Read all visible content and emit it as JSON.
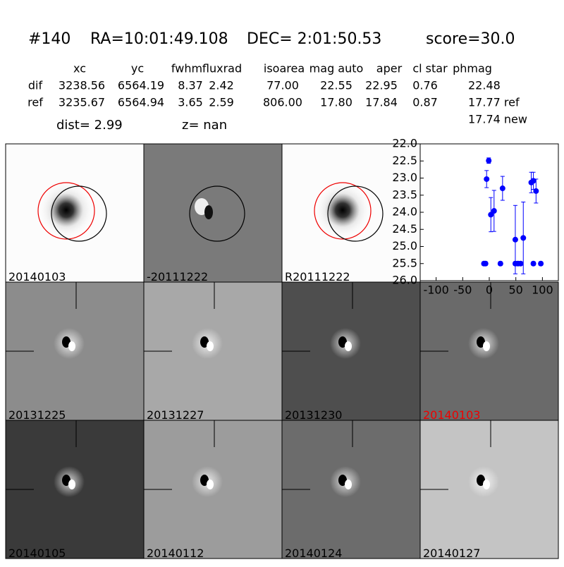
{
  "header": {
    "id": "#140",
    "ra": "RA=10:01:49.108",
    "dec": "DEC= 2:01:50.53",
    "score": "score=30.0"
  },
  "table": {
    "columns": [
      "xc",
      "yc",
      "fwhm",
      "fluxrad",
      "isoarea",
      "mag auto",
      "aper",
      "cl star",
      "phmag"
    ],
    "rows": [
      [
        "dif",
        "3238.56",
        "6564.19",
        "8.37",
        "2.42",
        "77.00",
        "22.55",
        "22.95",
        "0.76",
        "22.48"
      ],
      [
        "ref",
        "3235.67",
        "6564.94",
        "3.65",
        "2.59",
        "806.00",
        "17.80",
        "17.84",
        "0.87",
        "17.77 ref"
      ]
    ],
    "extra": "17.74 new"
  },
  "dist": "dist=  2.99",
  "z": "z=   nan",
  "panels": [
    "20140103",
    "-20111222",
    "R20111222",
    "20131225",
    "20131227",
    "20131230",
    "20140103",
    "20140105",
    "20140112",
    "20140124",
    "20140127"
  ],
  "chart_data": {
    "type": "scatter",
    "y_inverted": true,
    "xlim": [
      -130,
      130
    ],
    "xticks": [
      -100,
      -50,
      0,
      50,
      100
    ],
    "ylim": [
      22,
      26
    ],
    "yticks": [
      {
        "value": 22,
        "label": "22.0"
      },
      {
        "value": 22.5,
        "label": "22.5"
      },
      {
        "value": 23,
        "label": "23.0"
      },
      {
        "value": 23.5,
        "label": "23.5"
      },
      {
        "value": 24,
        "label": "24.0"
      },
      {
        "value": 24.5,
        "label": "24.5"
      },
      {
        "value": 25,
        "label": "25.0"
      },
      {
        "value": 25.5,
        "label": "25.5"
      },
      {
        "value": 26,
        "label": "26.0"
      }
    ],
    "series": [
      {
        "color": "#0000ff",
        "x": [
          -1,
          -5,
          3,
          9,
          25,
          49,
          64,
          79,
          83,
          88,
          -10,
          -7,
          21,
          49,
          54,
          59,
          83,
          97
        ],
        "values": [
          22.49,
          23.03,
          24.07,
          23.96,
          23.3,
          24.8,
          24.75,
          23.13,
          23.08,
          23.38,
          25.5,
          25.5,
          25.5,
          25.5,
          25.5,
          25.5,
          25.5,
          25.5
        ],
        "errors": [
          0.08,
          0.25,
          0.5,
          0.6,
          0.35,
          1.0,
          1.05,
          0.3,
          0.25,
          0.35,
          0.05,
          0.05,
          0.05,
          0.05,
          0.05,
          0.05,
          0.05,
          0.05
        ]
      }
    ]
  }
}
